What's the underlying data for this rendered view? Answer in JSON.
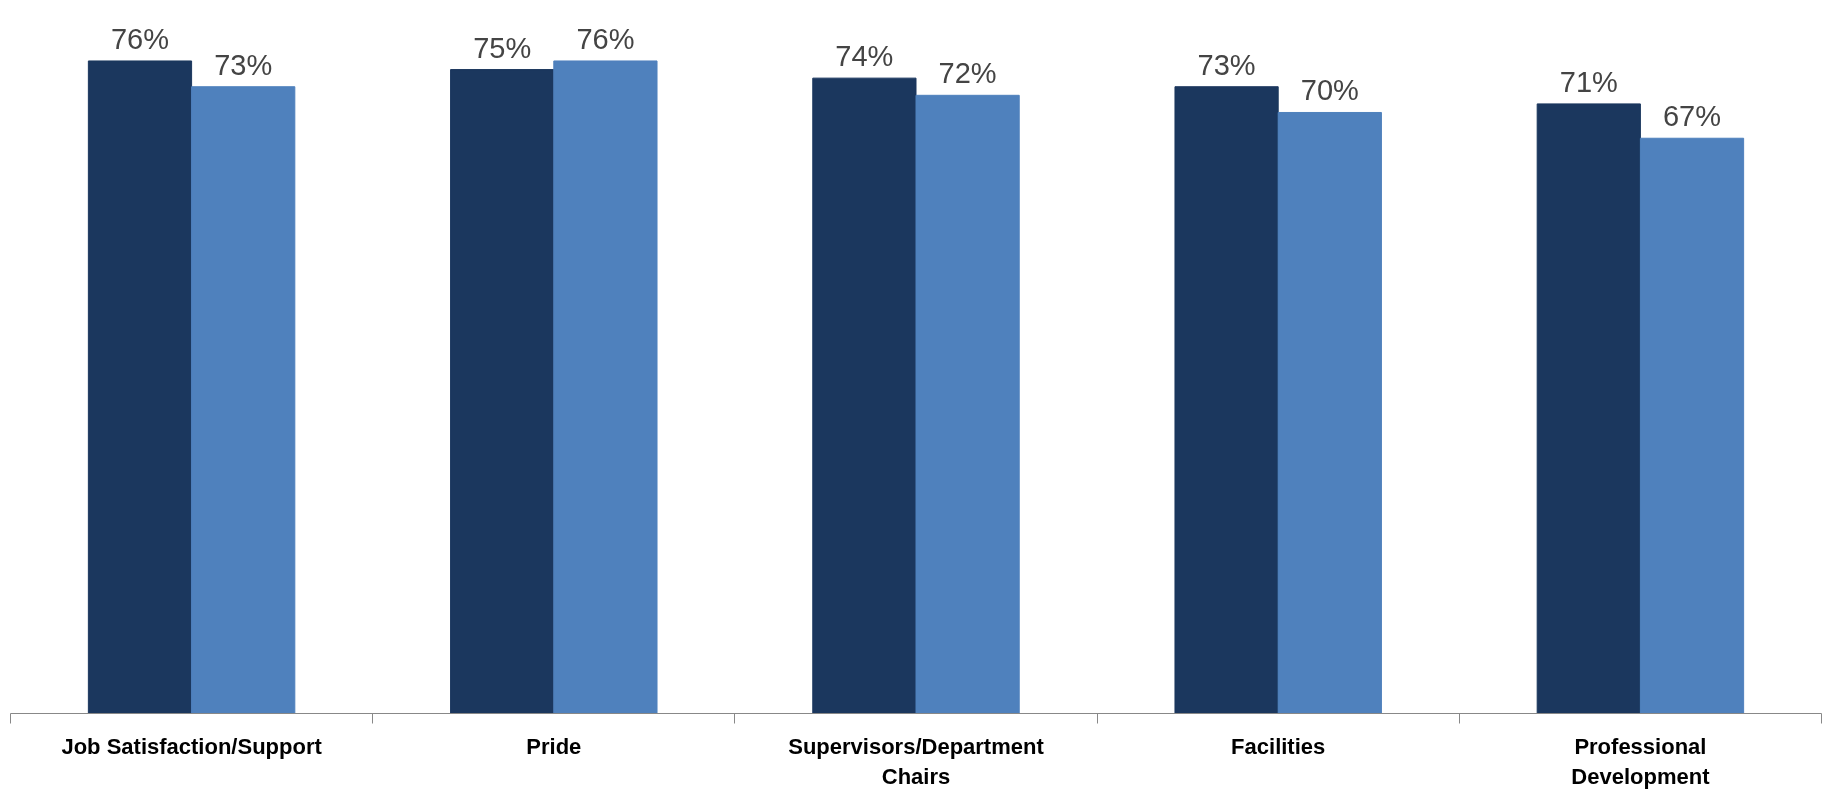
{
  "chart_data": {
    "type": "bar",
    "categories": [
      "Job Satisfaction/Support",
      "Pride",
      "Supervisors/Department\nChairs",
      "Facilities",
      "Professional\nDevelopment"
    ],
    "series": [
      {
        "color": "#1b375e",
        "values": [
          76,
          75,
          74,
          73,
          71
        ],
        "value_labels": [
          "76%",
          "75%",
          "74%",
          "73%",
          "71%"
        ]
      },
      {
        "color": "#4f81bd",
        "values": [
          73,
          76,
          72,
          70,
          67
        ],
        "value_labels": [
          "73%",
          "76%",
          "72%",
          "70%",
          "67%"
        ]
      }
    ]
  }
}
